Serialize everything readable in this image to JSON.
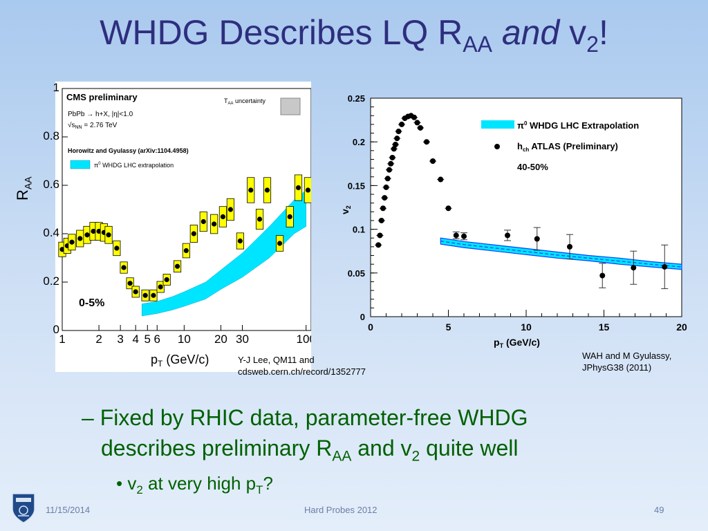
{
  "slide": {
    "title_main": "WHDG Describes LQ R",
    "title_sub": "AA",
    "title_and": "and",
    "title_v": " v",
    "title_v_sub": "2",
    "title_end": "!",
    "caption_left_1": "Y-J Lee, QM11 and",
    "caption_left_2": "cdsweb.cern.ch/record/1352777",
    "caption_right_1": "WAH and M Gyulassy,",
    "caption_right_2": "JPhysG38 (2011)",
    "bullet1_a": "– Fixed by RHIC data, parameter-free WHDG",
    "bullet1_b": "describes preliminary R",
    "bullet1_b_sub": "AA",
    "bullet1_c": " and v",
    "bullet1_c_sub": "2",
    "bullet1_d": " quite well",
    "bullet2_dot": "•",
    "bullet2_a": " v",
    "bullet2_a_sub": "2",
    "bullet2_b": " at very high p",
    "bullet2_b_sub": "T",
    "bullet2_c": "?",
    "footer_date": "11/15/2014",
    "footer_center": "Hard Probes 2012",
    "footer_page": "49",
    "colors": {
      "title": "#2e2e7e",
      "bullet": "#006000",
      "band": "#00e5ff",
      "box": "#ffff00"
    }
  },
  "chart_data": [
    {
      "type": "scatter",
      "header": "CMS preliminary",
      "taa_label_main": "T",
      "taa_label_sub": "AA",
      "taa_label_rest": " uncertainty",
      "legend_line1": "PbPb → h+X, |η|<1.0",
      "legend_line2_pre": "√s",
      "legend_line2_sub": "NN",
      "legend_line2_post": " = 2.76 TeV",
      "legend_line3": "Horowitz and Gyulassy (arXiv:1104.4958)",
      "legend_band_pre": "π",
      "legend_band_sup": "0",
      "legend_band_post": " WHDG LHC extrapolation",
      "centrality": "0-5%",
      "xlabel_pre": "p",
      "xlabel_sub": "T",
      "xlabel_post": " (GeV/c)",
      "ylabel_pre": "R",
      "ylabel_sub": "AA",
      "x_scale": "log",
      "xlim": [
        1,
        110
      ],
      "ylim": [
        0,
        1.0
      ],
      "x_tick_values": [
        1,
        2,
        3,
        4,
        5,
        6,
        10,
        20,
        30,
        100
      ],
      "x_tick_labels": [
        "1",
        "2",
        "3",
        "4",
        "5",
        "6",
        "10",
        "20",
        "30",
        "100"
      ],
      "y_tick_values": [
        0,
        0.2,
        0.4,
        0.6,
        0.8,
        1
      ],
      "y_tick_labels": [
        "0",
        "0.2",
        "0.4",
        "0.6",
        "0.8",
        "1"
      ],
      "reference_line_y": 1,
      "series": [
        {
          "name": "PbPb → h+X, |η|<1.0",
          "x": [
            1.0,
            1.1,
            1.2,
            1.4,
            1.6,
            1.8,
            2.0,
            2.2,
            2.4,
            2.8,
            3.2,
            3.6,
            4.0,
            4.8,
            5.6,
            6.4,
            7.2,
            8.8,
            10.4,
            12.0,
            14.4,
            17.6,
            20.8,
            24.0,
            28.8,
            35.2,
            41.6,
            48.0,
            60.8,
            73.6,
            86.4,
            103.6
          ],
          "y": [
            0.335,
            0.35,
            0.365,
            0.38,
            0.395,
            0.41,
            0.41,
            0.405,
            0.395,
            0.34,
            0.26,
            0.195,
            0.16,
            0.145,
            0.145,
            0.18,
            0.21,
            0.265,
            0.33,
            0.4,
            0.45,
            0.44,
            0.47,
            0.5,
            0.37,
            0.58,
            0.46,
            0.58,
            0.36,
            0.47,
            0.59,
            0.58
          ]
        },
        {
          "name": "π0 WHDG LHC extrapolation",
          "type": "band",
          "x": [
            4.5,
            6,
            8,
            10,
            15,
            20,
            30,
            50,
            80,
            100
          ],
          "y_low": [
            0.06,
            0.07,
            0.085,
            0.1,
            0.13,
            0.17,
            0.22,
            0.3,
            0.4,
            0.43
          ],
          "y_high": [
            0.11,
            0.12,
            0.14,
            0.16,
            0.2,
            0.25,
            0.32,
            0.43,
            0.54,
            0.58
          ]
        }
      ]
    },
    {
      "type": "scatter",
      "legend_band_pre": "π",
      "legend_band_sup": "0",
      "legend_band_post": " WHDG LHC Extrapolation",
      "legend_points_pre": "h",
      "legend_points_sub": "ch",
      "legend_points_post": " ATLAS (Preliminary)",
      "centrality": "40-50%",
      "xlabel_pre": "p",
      "xlabel_sub": "T",
      "xlabel_post": " (GeV/c)",
      "ylabel_pre": "v",
      "ylabel_sub": "2",
      "xlim": [
        0,
        20
      ],
      "ylim": [
        0,
        0.25
      ],
      "x_tick_values": [
        0,
        5,
        10,
        15,
        20
      ],
      "x_tick_labels": [
        "0",
        "5",
        "10",
        "15",
        "20"
      ],
      "y_tick_values": [
        0,
        0.05,
        0.1,
        0.15,
        0.2,
        0.25
      ],
      "y_tick_labels": [
        "0",
        "0.05",
        "0.1",
        "0.15",
        "0.2",
        "0.25"
      ],
      "series": [
        {
          "name": "hch ATLAS (Preliminary)",
          "x": [
            0.5,
            0.6,
            0.7,
            0.8,
            0.9,
            1.0,
            1.1,
            1.2,
            1.3,
            1.4,
            1.5,
            1.6,
            1.7,
            1.8,
            2.0,
            2.2,
            2.4,
            2.6,
            2.8,
            3.0,
            3.2,
            3.6,
            4.0,
            4.5,
            5.0,
            5.5,
            6.0,
            8.8,
            10.7,
            12.8,
            14.9,
            16.9,
            18.9
          ],
          "y": [
            0.082,
            0.093,
            0.11,
            0.124,
            0.136,
            0.148,
            0.158,
            0.168,
            0.175,
            0.182,
            0.192,
            0.197,
            0.204,
            0.212,
            0.22,
            0.227,
            0.229,
            0.23,
            0.228,
            0.222,
            0.216,
            0.2,
            0.178,
            0.157,
            0.124,
            0.093,
            0.092,
            0.093,
            0.089,
            0.08,
            0.047,
            0.056,
            0.057
          ],
          "y_err": [
            0.002,
            0.002,
            0.002,
            0.002,
            0.002,
            0.002,
            0.002,
            0.002,
            0.002,
            0.002,
            0.002,
            0.002,
            0.002,
            0.002,
            0.002,
            0.002,
            0.002,
            0.002,
            0.002,
            0.002,
            0.002,
            0.002,
            0.002,
            0.002,
            0.003,
            0.004,
            0.004,
            0.006,
            0.013,
            0.014,
            0.014,
            0.019,
            0.025
          ]
        },
        {
          "name": "π0 WHDG LHC Extrapolation",
          "type": "band",
          "x": [
            4.5,
            6,
            8,
            10,
            12,
            14,
            16,
            18,
            20
          ],
          "y_low": [
            0.083,
            0.079,
            0.075,
            0.071,
            0.067,
            0.064,
            0.06,
            0.057,
            0.054
          ],
          "y_high": [
            0.09,
            0.086,
            0.082,
            0.078,
            0.074,
            0.07,
            0.067,
            0.063,
            0.06
          ]
        }
      ]
    }
  ]
}
